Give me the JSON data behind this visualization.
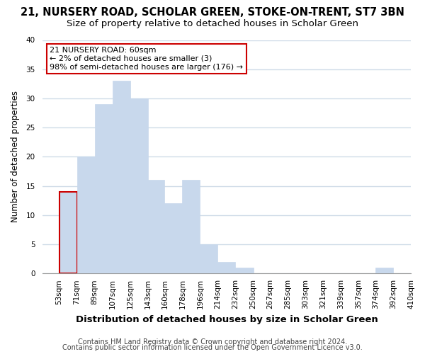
{
  "title1": "21, NURSERY ROAD, SCHOLAR GREEN, STOKE-ON-TRENT, ST7 3BN",
  "title2": "Size of property relative to detached houses in Scholar Green",
  "xlabel": "Distribution of detached houses by size in Scholar Green",
  "ylabel": "Number of detached properties",
  "bin_edges": [
    53,
    71,
    89,
    107,
    125,
    143,
    160,
    178,
    196,
    214,
    232,
    250,
    267,
    285,
    303,
    321,
    339,
    357,
    374,
    392,
    410
  ],
  "bar_heights": [
    14,
    20,
    29,
    33,
    30,
    16,
    12,
    16,
    5,
    2,
    1,
    0,
    0,
    0,
    0,
    0,
    0,
    0,
    1,
    0
  ],
  "bar_color": "#c8d8ec",
  "highlight_bar_index": 0,
  "highlight_color": "#cc0000",
  "ylim": [
    0,
    40
  ],
  "yticks": [
    0,
    5,
    10,
    15,
    20,
    25,
    30,
    35,
    40
  ],
  "annotation_title": "21 NURSERY ROAD: 60sqm",
  "annotation_line1": "← 2% of detached houses are smaller (3)",
  "annotation_line2": "98% of semi-detached houses are larger (176) →",
  "footnote1": "Contains HM Land Registry data © Crown copyright and database right 2024.",
  "footnote2": "Contains public sector information licensed under the Open Government Licence v3.0.",
  "background_color": "#ffffff",
  "plot_bg_color": "#ffffff",
  "grid_color": "#d0dce8",
  "title1_fontsize": 10.5,
  "title2_fontsize": 9.5,
  "xlabel_fontsize": 9.5,
  "ylabel_fontsize": 8.5,
  "tick_fontsize": 7.5,
  "annotation_fontsize": 8,
  "footnote_fontsize": 7
}
